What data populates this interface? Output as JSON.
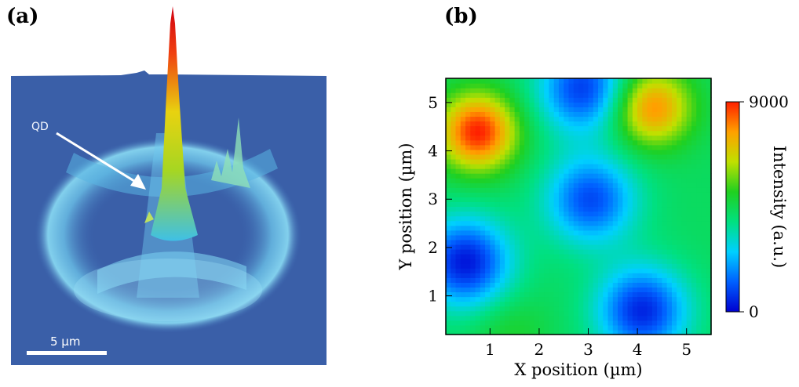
{
  "panel_a": {
    "label": "(a)",
    "annotation": "QD",
    "scale_bar": "5 µm"
  },
  "panel_b": {
    "label": "(b)"
  },
  "chart_data": [
    {
      "type": "heatmap",
      "xlabel": "X position (µm)",
      "ylabel": "Y position (µm)",
      "xlim": [
        0.1,
        5.5
      ],
      "ylim": [
        0.2,
        5.5
      ],
      "xticks": [
        1,
        2,
        3,
        4,
        5
      ],
      "yticks": [
        1,
        2,
        3,
        4,
        5
      ],
      "colorbar": {
        "label": "Intensity (a.u.)",
        "min": 0,
        "max": 9000,
        "tick_labels": [
          "0",
          "9000"
        ],
        "colormap": [
          "#0000d0",
          "#0060ff",
          "#00d0ff",
          "#00e080",
          "#20d020",
          "#c0e000",
          "#ffa000",
          "#ff2000"
        ]
      },
      "features": [
        {
          "kind": "max",
          "x": 0.75,
          "y": 4.4,
          "intensity": 9000
        },
        {
          "kind": "max",
          "x": 4.3,
          "y": 4.9,
          "intensity": 8000
        },
        {
          "kind": "max",
          "x": 1.4,
          "y": 0.25,
          "intensity": 5000
        },
        {
          "kind": "min",
          "x": 3.05,
          "y": 3.0,
          "intensity": 1000
        },
        {
          "kind": "min",
          "x": 0.5,
          "y": 1.7,
          "intensity": 300
        },
        {
          "kind": "min",
          "x": 4.1,
          "y": 0.7,
          "intensity": 500
        },
        {
          "kind": "min",
          "x": 2.9,
          "y": 5.3,
          "intensity": 800
        }
      ]
    }
  ]
}
